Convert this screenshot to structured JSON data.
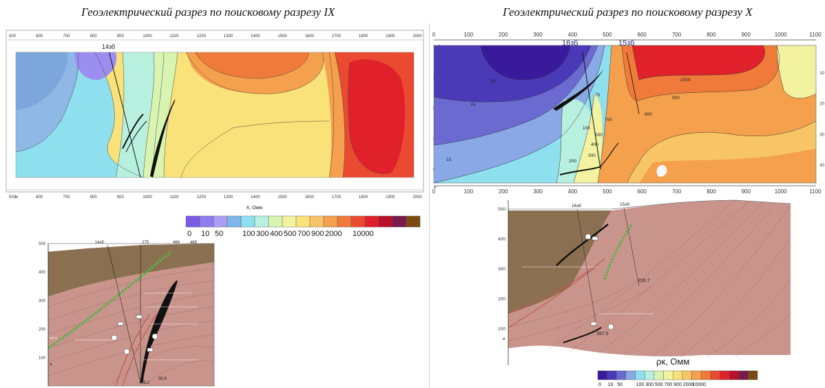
{
  "titles": {
    "left": "Геоэлектрический разрез по поисковому разрезу IX",
    "right": "Геоэлектрический разрез по поисковому разрезу X"
  },
  "left_panel": {
    "x_ticks": [
      "500",
      "600",
      "700",
      "800",
      "900",
      "1000",
      "1100",
      "1200",
      "1300",
      "1400",
      "1500",
      "1600",
      "1700",
      "1800",
      "1900",
      "2000"
    ],
    "unit_m": "м",
    "well_label": "14зб",
    "axis_label": "К, Омм",
    "legend_values": [
      "0",
      "10",
      "50",
      "100",
      "300",
      "400",
      "500",
      "700",
      "900",
      "2000",
      "10000"
    ],
    "legend_colors": [
      "#7a5ce6",
      "#8f7cf0",
      "#a99ef4",
      "#7fb6e8",
      "#8ee0ee",
      "#b8f0e0",
      "#d8f4b0",
      "#f2f2a0",
      "#f9e27a",
      "#f8c566",
      "#f5a04c",
      "#f07a3a",
      "#ea4a30",
      "#e0202a",
      "#b8102a",
      "#7a1a4a",
      "#7a4a10"
    ],
    "section": {
      "y_ticks": [
        "500",
        "400",
        "300",
        "200",
        "100"
      ],
      "top_labels": [
        "14зб",
        "275",
        "466",
        "465"
      ],
      "bottom_labels": [
        "465.2",
        "36.8"
      ],
      "left_label": "13°-5",
      "unit_m": "м"
    }
  },
  "right_panel": {
    "x_ticks": [
      "0",
      "100",
      "200",
      "300",
      "400",
      "500",
      "600",
      "700",
      "800",
      "900",
      "1000",
      "1100"
    ],
    "y_ticks": [
      "0",
      "-100",
      "-200",
      "-300",
      "-400"
    ],
    "right_edge_ticks": [
      "10",
      "20",
      "30",
      "40"
    ],
    "unit_m": "м",
    "well_labels": [
      "16зб",
      "15зб"
    ],
    "contour_labels": [
      "50",
      "25",
      "15",
      "75",
      "100",
      "200",
      "300",
      "400",
      "500",
      "700",
      "800",
      "900",
      "1000"
    ],
    "axis_label": "ρк, Омм",
    "legend_values": [
      "0",
      "10",
      "50",
      "100",
      "300",
      "500",
      "700",
      "900",
      "2000",
      "10000"
    ],
    "legend_colors": [
      "#3a1a9c",
      "#4a3ab8",
      "#6a6ad0",
      "#8aa8e6",
      "#8ee0ee",
      "#b8f0e0",
      "#d8f4b0",
      "#f2f2a0",
      "#f9e27a",
      "#f8c566",
      "#f5a04c",
      "#f07a3a",
      "#ea4a30",
      "#e0202a",
      "#b8102a",
      "#7a1a4a",
      "#7a4a10"
    ],
    "section": {
      "y_ticks": [
        "500",
        "400",
        "300",
        "200",
        "100"
      ],
      "top_labels": [
        "16зб",
        "15зб"
      ],
      "values": [
        "226.7",
        "397.5"
      ],
      "unit_m": "м"
    }
  }
}
